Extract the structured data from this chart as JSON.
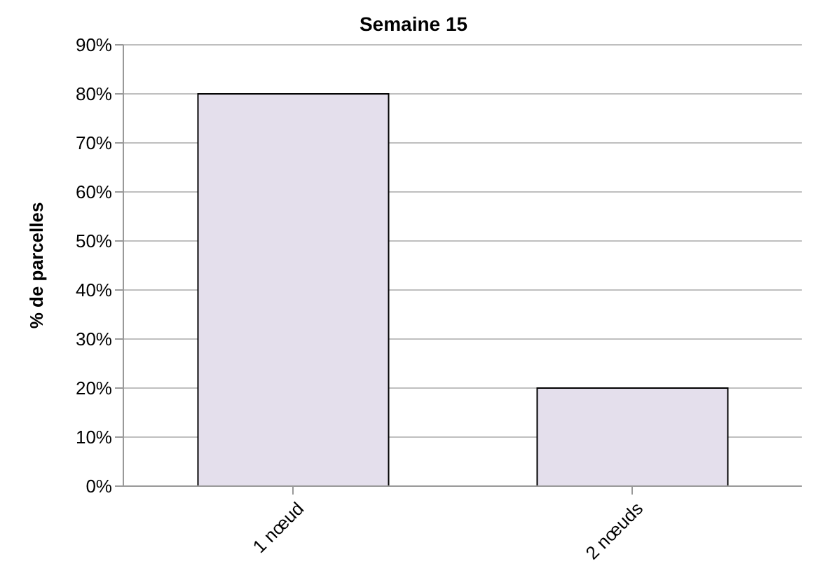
{
  "chart_data": {
    "type": "bar",
    "title": "Semaine 15",
    "ylabel": "% de parcelles",
    "categories": [
      "1 nœud",
      "2 nœuds"
    ],
    "series": [
      {
        "color": "#e4dfec",
        "values": [
          80,
          20
        ]
      }
    ],
    "ylim": [
      0,
      90
    ],
    "yticks": [
      {
        "value": 0,
        "label": "0%"
      },
      {
        "value": 10,
        "label": "10%"
      },
      {
        "value": 20,
        "label": "20%"
      },
      {
        "value": 30,
        "label": "30%"
      },
      {
        "value": 40,
        "label": "40%"
      },
      {
        "value": 50,
        "label": "50%"
      },
      {
        "value": 60,
        "label": "60%"
      },
      {
        "value": 70,
        "label": "70%"
      },
      {
        "value": 80,
        "label": "80%"
      },
      {
        "value": 90,
        "label": "90%"
      }
    ],
    "grid": "y",
    "legend": false
  }
}
